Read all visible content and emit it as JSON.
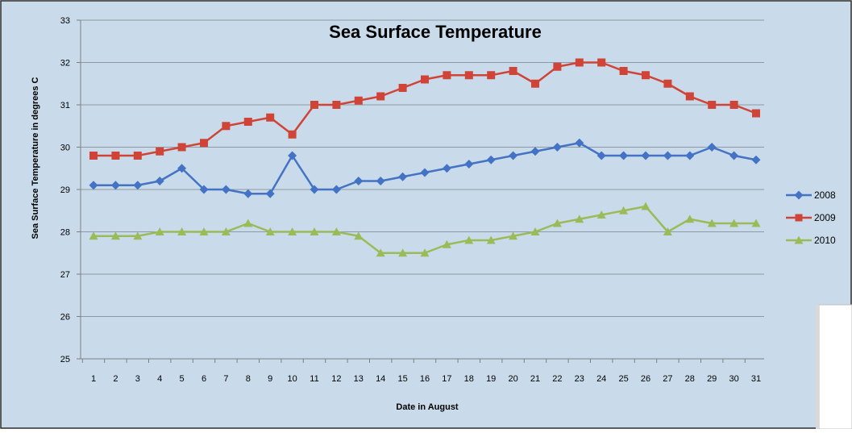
{
  "chart_data": {
    "type": "line",
    "title": "Sea Surface Temperature",
    "xlabel": "Date in August",
    "ylabel": "Sea Surface Temperature in degrees C",
    "x": [
      1,
      2,
      3,
      4,
      5,
      6,
      7,
      8,
      9,
      10,
      11,
      12,
      13,
      14,
      15,
      16,
      17,
      18,
      19,
      20,
      21,
      22,
      23,
      24,
      25,
      26,
      27,
      28,
      29,
      30,
      31
    ],
    "ylim": [
      25,
      33
    ],
    "yticks": [
      25,
      26,
      27,
      28,
      29,
      30,
      31,
      32,
      33
    ],
    "grid": true,
    "legend_position": "right",
    "colors": {
      "background": "#c9dbea",
      "gridline": "#8e9aa3",
      "frame": "#2b2b2b"
    },
    "series": [
      {
        "name": "2008",
        "color": "#4472c4",
        "marker": "diamond",
        "values": [
          29.1,
          29.1,
          29.1,
          29.2,
          29.5,
          29.0,
          29.0,
          28.9,
          28.9,
          29.8,
          29.0,
          29.0,
          29.2,
          29.2,
          29.3,
          29.4,
          29.5,
          29.6,
          29.7,
          29.8,
          29.9,
          30.0,
          30.1,
          29.8,
          29.8,
          29.8,
          29.8,
          29.8,
          30.0,
          29.8,
          29.7
        ]
      },
      {
        "name": "2009",
        "color": "#d04437",
        "marker": "square",
        "values": [
          29.8,
          29.8,
          29.8,
          29.9,
          30.0,
          30.1,
          30.5,
          30.6,
          30.7,
          30.3,
          31.0,
          31.0,
          31.1,
          31.2,
          31.4,
          31.6,
          31.7,
          31.7,
          31.7,
          31.8,
          31.5,
          31.9,
          32.0,
          32.0,
          31.8,
          31.7,
          31.5,
          31.2,
          31.0,
          31.0,
          30.8
        ]
      },
      {
        "name": "2010",
        "color": "#9bbb59",
        "marker": "triangle",
        "values": [
          27.9,
          27.9,
          27.9,
          28.0,
          28.0,
          28.0,
          28.0,
          28.2,
          28.0,
          28.0,
          28.0,
          28.0,
          27.9,
          27.5,
          27.5,
          27.5,
          27.7,
          27.8,
          27.8,
          27.9,
          28.0,
          28.2,
          28.3,
          28.4,
          28.5,
          28.6,
          28.0,
          28.3,
          28.2,
          28.2,
          28.2
        ]
      }
    ]
  }
}
